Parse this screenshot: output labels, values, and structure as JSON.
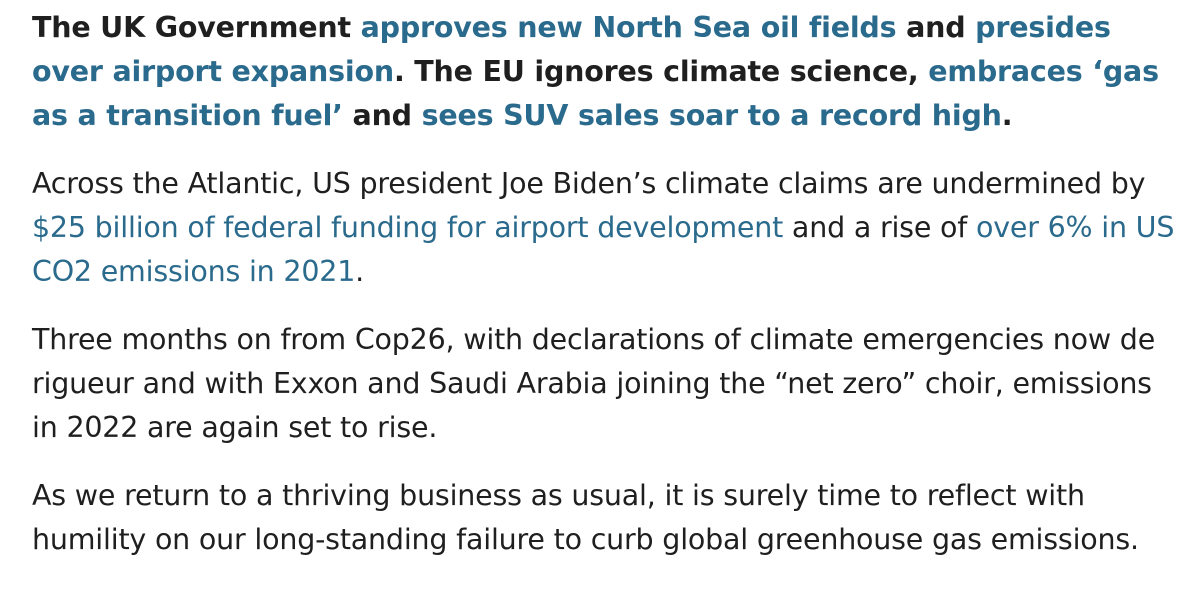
{
  "paragraphs": [
    {
      "bold": true,
      "segments": [
        {
          "text": "The UK Government ",
          "link": false
        },
        {
          "text": "approves new North Sea oil fields",
          "link": true
        },
        {
          "text": " and ",
          "link": false
        },
        {
          "text": "presides over airport expansion",
          "link": true
        },
        {
          "text": ". The EU ignores climate science, ",
          "link": false
        },
        {
          "text": "embraces ‘gas as a transition fuel’",
          "link": true
        },
        {
          "text": " and ",
          "link": false
        },
        {
          "text": "sees SUV sales soar to a record high",
          "link": true
        },
        {
          "text": ".",
          "link": false
        }
      ]
    },
    {
      "bold": false,
      "segments": [
        {
          "text": "Across the Atlantic, US president Joe Biden’s climate claims are undermined by ",
          "link": false
        },
        {
          "text": "$25 billion of federal funding for airport development",
          "link": true
        },
        {
          "text": " and a rise of ",
          "link": false
        },
        {
          "text": "over 6% in US CO2 emissions in 2021",
          "link": true
        },
        {
          "text": ".",
          "link": false
        }
      ]
    },
    {
      "bold": false,
      "segments": [
        {
          "text": "Three months on from Cop26, with declarations of climate emergencies now de rigueur and with Exxon and Saudi Arabia joining the “net zero” choir, emissions in 2022 are again set to rise.",
          "link": false
        }
      ]
    },
    {
      "bold": false,
      "segments": [
        {
          "text": "As we return to a thriving business as usual, it is surely time to reflect with humility on our long-standing failure to curb global greenhouse gas emissions.",
          "link": false
        }
      ]
    }
  ],
  "colors": {
    "text": "#1f1f1f",
    "link": "#2a6a8c",
    "background": "#ffffff"
  }
}
